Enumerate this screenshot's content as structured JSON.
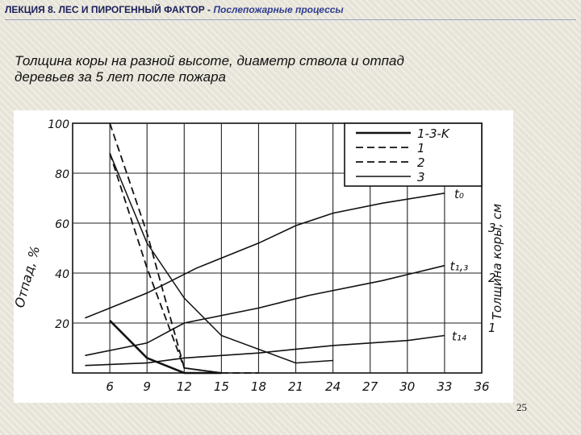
{
  "header": {
    "lecture": "ЛЕКЦИЯ 8. ЛЕС И ПИРОГЕННЫЙ ФАКТОР",
    "separator": " - ",
    "topic": "Послепожарные процессы"
  },
  "slide_title": "Толщина коры на разной высоте, диаметр ствола и отпад деревьев за 5 лет после пожара",
  "page_number": "25",
  "chart_data": {
    "type": "line",
    "ylabel": "Отпад, %",
    "ylabel_right": "Толщина коры, см",
    "x_ticks": [
      "6",
      "9",
      "12",
      "15",
      "18",
      "21",
      "24",
      "27",
      "30",
      "33",
      "36"
    ],
    "y_ticks": [
      "20",
      "40",
      "60",
      "80",
      "100"
    ],
    "y_right_ticks": [
      "1",
      "2",
      "3"
    ],
    "xlim": [
      3,
      36
    ],
    "ylim": [
      0,
      100
    ],
    "grid": true,
    "legend_position": "top-right",
    "legend": [
      {
        "label": "1-3-K",
        "style": "solid"
      },
      {
        "label": "1",
        "style": "dashed"
      },
      {
        "label": "2",
        "style": "dashed"
      },
      {
        "label": "3",
        "style": "solid-thin"
      }
    ],
    "bark_series": [
      {
        "name": "t₀",
        "points": [
          [
            4,
            22
          ],
          [
            9,
            32
          ],
          [
            13,
            42
          ],
          [
            18,
            52
          ],
          [
            21,
            59
          ],
          [
            24,
            64
          ],
          [
            28,
            68
          ],
          [
            33,
            72
          ]
        ]
      },
      {
        "name": "t₁,₃",
        "points": [
          [
            4,
            7
          ],
          [
            9,
            12
          ],
          [
            12,
            20
          ],
          [
            18,
            26
          ],
          [
            22,
            31
          ],
          [
            28,
            37
          ],
          [
            33,
            43
          ]
        ]
      },
      {
        "name": "t₁₄",
        "points": [
          [
            4,
            3
          ],
          [
            9,
            4
          ],
          [
            12,
            6
          ],
          [
            18,
            8
          ],
          [
            24,
            11
          ],
          [
            30,
            13
          ],
          [
            33,
            15
          ]
        ]
      }
    ],
    "mortality_series": [
      {
        "legend": "3",
        "points": [
          [
            6,
            88
          ],
          [
            9,
            52
          ],
          [
            12,
            30
          ],
          [
            15,
            15
          ],
          [
            21,
            4
          ],
          [
            24,
            5
          ]
        ]
      },
      {
        "legend": "1",
        "points": [
          [
            6,
            100
          ],
          [
            9,
            56
          ],
          [
            12,
            2
          ],
          [
            15,
            0
          ],
          [
            18,
            0
          ]
        ]
      },
      {
        "legend": "2",
        "points": [
          [
            6,
            88
          ],
          [
            9,
            42
          ],
          [
            12,
            2
          ],
          [
            15,
            0
          ]
        ]
      },
      {
        "legend": "1-3-K",
        "points": [
          [
            6,
            21
          ],
          [
            9,
            6
          ],
          [
            12,
            0
          ],
          [
            15,
            0
          ]
        ]
      }
    ]
  }
}
